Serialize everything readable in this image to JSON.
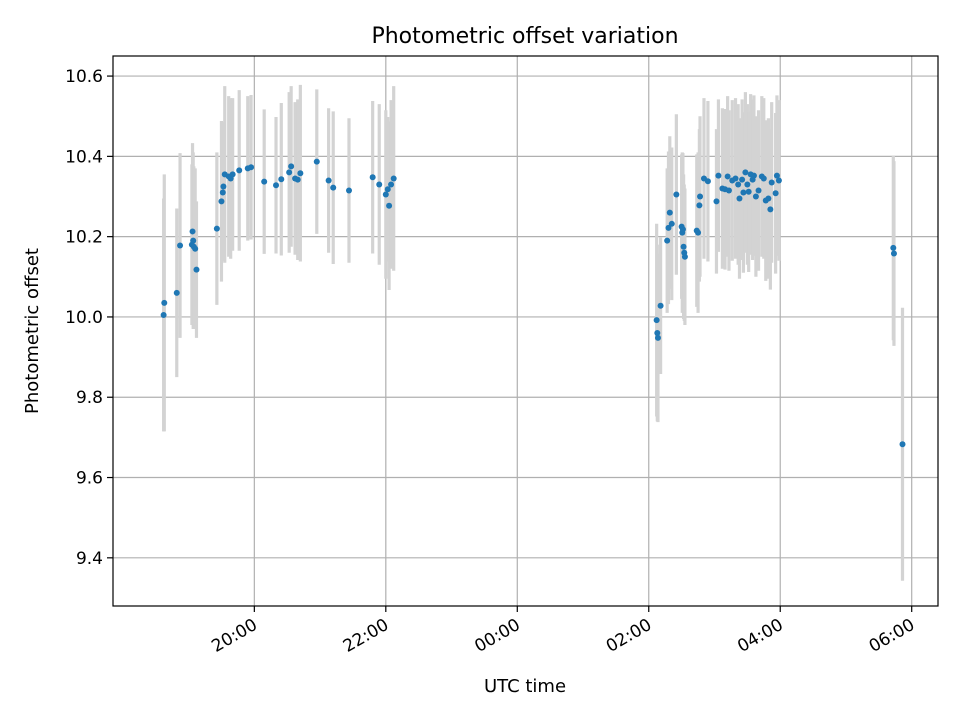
{
  "chart_data": {
    "type": "scatter",
    "title": "Photometric offset variation",
    "xlabel": "UTC time",
    "ylabel": "Photometric offset",
    "xlim_hours": [
      17.85,
      30.4
    ],
    "ylim": [
      9.28,
      10.65
    ],
    "grid": true,
    "x_ticks": [
      {
        "hour": 20,
        "label": "20:00"
      },
      {
        "hour": 22,
        "label": "22:00"
      },
      {
        "hour": 24,
        "label": "00:00"
      },
      {
        "hour": 26,
        "label": "02:00"
      },
      {
        "hour": 28,
        "label": "04:00"
      },
      {
        "hour": 30,
        "label": "06:00"
      }
    ],
    "y_ticks": [
      {
        "value": 9.4,
        "label": "9.4"
      },
      {
        "value": 9.6,
        "label": "9.6"
      },
      {
        "value": 9.8,
        "label": "9.8"
      },
      {
        "value": 10.0,
        "label": "10.0"
      },
      {
        "value": 10.2,
        "label": "10.2"
      },
      {
        "value": 10.4,
        "label": "10.4"
      },
      {
        "value": 10.6,
        "label": "10.6"
      }
    ],
    "colors": {
      "points": "#1f77b4",
      "errorbars": "#d3d3d3",
      "grid": "#b0b0b0"
    },
    "points": [
      [
        18.62,
        10.005,
        0.29
      ],
      [
        18.63,
        10.035,
        0.32
      ],
      [
        18.82,
        10.06,
        0.21
      ],
      [
        18.87,
        10.178,
        0.23
      ],
      [
        19.05,
        10.18,
        0.2
      ],
      [
        19.06,
        10.213,
        0.22
      ],
      [
        19.07,
        10.19,
        0.22
      ],
      [
        19.08,
        10.175,
        0.2
      ],
      [
        19.1,
        10.17,
        0.2
      ],
      [
        19.12,
        10.118,
        0.17
      ],
      [
        19.43,
        10.22,
        0.19
      ],
      [
        19.5,
        10.288,
        0.2
      ],
      [
        19.52,
        10.31,
        0.17
      ],
      [
        19.53,
        10.325,
        0.16
      ],
      [
        19.55,
        10.355,
        0.22
      ],
      [
        19.61,
        10.35,
        0.2
      ],
      [
        19.64,
        10.345,
        0.2
      ],
      [
        19.67,
        10.355,
        0.19
      ],
      [
        19.77,
        10.365,
        0.2
      ],
      [
        19.9,
        10.37,
        0.18
      ],
      [
        19.95,
        10.373,
        0.18
      ],
      [
        20.15,
        10.337,
        0.18
      ],
      [
        20.33,
        10.328,
        0.17
      ],
      [
        20.41,
        10.343,
        0.19
      ],
      [
        20.53,
        10.36,
        0.2
      ],
      [
        20.56,
        10.375,
        0.2
      ],
      [
        20.62,
        10.345,
        0.19
      ],
      [
        20.66,
        10.342,
        0.2
      ],
      [
        20.7,
        10.358,
        0.22
      ],
      [
        20.95,
        10.387,
        0.18
      ],
      [
        21.13,
        10.34,
        0.18
      ],
      [
        21.2,
        10.322,
        0.19
      ],
      [
        21.44,
        10.315,
        0.18
      ],
      [
        21.8,
        10.348,
        0.19
      ],
      [
        21.9,
        10.33,
        0.2
      ],
      [
        22.0,
        10.305,
        0.21
      ],
      [
        22.03,
        10.318,
        0.18
      ],
      [
        22.05,
        10.277,
        0.21
      ],
      [
        22.08,
        10.33,
        0.21
      ],
      [
        22.12,
        10.345,
        0.23
      ],
      [
        26.12,
        9.992,
        0.24
      ],
      [
        26.13,
        9.96,
        0.22
      ],
      [
        26.14,
        9.948,
        0.21
      ],
      [
        26.18,
        10.028,
        0.17
      ],
      [
        26.28,
        10.19,
        0.18
      ],
      [
        26.3,
        10.222,
        0.19
      ],
      [
        26.32,
        10.26,
        0.19
      ],
      [
        26.35,
        10.232,
        0.19
      ],
      [
        26.42,
        10.305,
        0.2
      ],
      [
        26.5,
        10.225,
        0.18
      ],
      [
        26.51,
        10.21,
        0.2
      ],
      [
        26.52,
        10.218,
        0.19
      ],
      [
        26.53,
        10.175,
        0.18
      ],
      [
        26.54,
        10.16,
        0.17
      ],
      [
        26.55,
        10.15,
        0.17
      ],
      [
        26.73,
        10.215,
        0.19
      ],
      [
        26.75,
        10.21,
        0.2
      ],
      [
        26.77,
        10.278,
        0.19
      ],
      [
        26.78,
        10.3,
        0.2
      ],
      [
        26.84,
        10.345,
        0.2
      ],
      [
        26.9,
        10.338,
        0.2
      ],
      [
        27.03,
        10.288,
        0.18
      ],
      [
        27.06,
        10.352,
        0.19
      ],
      [
        27.12,
        10.32,
        0.2
      ],
      [
        27.16,
        10.318,
        0.2
      ],
      [
        27.2,
        10.35,
        0.2
      ],
      [
        27.22,
        10.315,
        0.2
      ],
      [
        27.27,
        10.34,
        0.2
      ],
      [
        27.32,
        10.345,
        0.2
      ],
      [
        27.36,
        10.33,
        0.2
      ],
      [
        27.38,
        10.295,
        0.2
      ],
      [
        27.42,
        10.342,
        0.2
      ],
      [
        27.44,
        10.31,
        0.2
      ],
      [
        27.47,
        10.36,
        0.2
      ],
      [
        27.5,
        10.33,
        0.2
      ],
      [
        27.52,
        10.312,
        0.2
      ],
      [
        27.55,
        10.355,
        0.2
      ],
      [
        27.58,
        10.342,
        0.2
      ],
      [
        27.6,
        10.352,
        0.2
      ],
      [
        27.63,
        10.3,
        0.2
      ],
      [
        27.67,
        10.315,
        0.2
      ],
      [
        27.72,
        10.35,
        0.2
      ],
      [
        27.75,
        10.345,
        0.2
      ],
      [
        27.78,
        10.29,
        0.2
      ],
      [
        27.82,
        10.295,
        0.2
      ],
      [
        27.85,
        10.268,
        0.2
      ],
      [
        27.87,
        10.335,
        0.2
      ],
      [
        27.93,
        10.308,
        0.2
      ],
      [
        27.95,
        10.352,
        0.2
      ],
      [
        27.98,
        10.34,
        0.2
      ],
      [
        29.72,
        10.172,
        0.23
      ],
      [
        29.73,
        10.158,
        0.23
      ],
      [
        29.86,
        9.683,
        0.34
      ]
    ]
  }
}
